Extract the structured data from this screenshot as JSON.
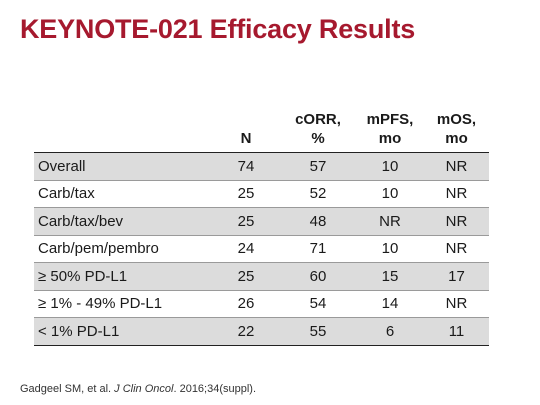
{
  "title": "KEYNOTE-021 Efficacy Results",
  "table": {
    "headers": {
      "label": "",
      "n": "N",
      "corr_line1": "cORR,",
      "corr_line2": "%",
      "mpfs_line1": "mPFS,",
      "mpfs_line2": "mo",
      "mos_line1": "mOS,",
      "mos_line2": "mo"
    },
    "rows": [
      {
        "label": "Overall",
        "n": "74",
        "corr": "57",
        "mpfs": "10",
        "mos": "NR"
      },
      {
        "label": "Carb/tax",
        "n": "25",
        "corr": "52",
        "mpfs": "10",
        "mos": "NR"
      },
      {
        "label": "Carb/tax/bev",
        "n": "25",
        "corr": "48",
        "mpfs": "NR",
        "mos": "NR"
      },
      {
        "label": "Carb/pem/pembro",
        "n": "24",
        "corr": "71",
        "mpfs": "10",
        "mos": "NR"
      },
      {
        "label": "≥ 50% PD-L1",
        "n": "25",
        "corr": "60",
        "mpfs": "15",
        "mos": "17"
      },
      {
        "label": "≥ 1% - 49% PD-L1",
        "n": "26",
        "corr": "54",
        "mpfs": "14",
        "mos": "NR"
      },
      {
        "label": "< 1% PD-L1",
        "n": "22",
        "corr": "55",
        "mpfs": "6",
        "mos": "11"
      }
    ]
  },
  "citation": {
    "authors": "Gadgeel SM, et al. ",
    "journal": "J Clin Oncol",
    "details": ". 2016;34(suppl)."
  },
  "colors": {
    "title": "#a6192e",
    "shaded_row": "#dcdcdc"
  }
}
